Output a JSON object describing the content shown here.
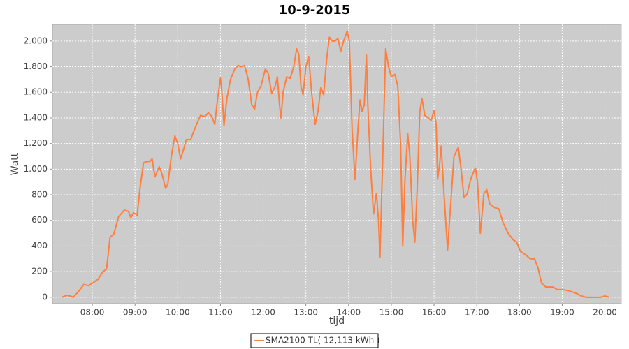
{
  "chart_data": {
    "type": "line",
    "title": "10-9-2015",
    "x_label": "tijd",
    "y_label": "Watt",
    "xlim": [
      "07:04",
      "20:23"
    ],
    "xticks": [
      "08:00",
      "09:00",
      "10:00",
      "11:00",
      "12:00",
      "13:00",
      "14:00",
      "15:00",
      "16:00",
      "17:00",
      "18:00",
      "19:00",
      "20:00"
    ],
    "ylim": [
      -50,
      2130
    ],
    "yticks": [
      0,
      200,
      400,
      600,
      800,
      {
        "value": 1000,
        "label": "1.000"
      },
      {
        "value": 1200,
        "label": "1.200"
      },
      {
        "value": 1400,
        "label": "1.400"
      },
      {
        "value": 1600,
        "label": "1.600"
      },
      {
        "value": 1800,
        "label": "1.800"
      },
      {
        "value": 2000,
        "label": "2.000"
      }
    ],
    "grid": true,
    "legend": "bottom",
    "series": [
      {
        "name": "SMA2100 TL( 12,113 kWh )",
        "color": "#ff7f3f",
        "x": [
          "07:17",
          "07:24",
          "07:29",
          "07:33",
          "07:40",
          "07:48",
          "07:55",
          "08:00",
          "08:08",
          "08:15",
          "08:20",
          "08:25",
          "08:30",
          "08:37",
          "08:45",
          "08:51",
          "08:54",
          "08:58",
          "09:03",
          "09:07",
          "09:12",
          "09:17",
          "09:21",
          "09:24",
          "09:28",
          "09:34",
          "09:38",
          "09:43",
          "09:46",
          "09:51",
          "09:56",
          "10:00",
          "10:04",
          "10:08",
          "10:12",
          "10:18",
          "10:25",
          "10:32",
          "10:38",
          "10:43",
          "10:48",
          "10:52",
          "10:56",
          "11:00",
          "11:02",
          "11:05",
          "11:09",
          "11:14",
          "11:20",
          "11:25",
          "11:29",
          "11:34",
          "11:39",
          "11:44",
          "11:48",
          "11:52",
          "11:57",
          "12:03",
          "12:07",
          "12:12",
          "12:17",
          "12:20",
          "12:23",
          "12:25",
          "12:28",
          "12:33",
          "12:38",
          "12:43",
          "12:47",
          "12:50",
          "12:53",
          "12:56",
          "13:00",
          "13:04",
          "13:08",
          "13:13",
          "13:17",
          "13:21",
          "13:25",
          "13:29",
          "13:33",
          "13:37",
          "13:41",
          "13:45",
          "13:49",
          "13:53",
          "13:58",
          "14:01",
          "14:05",
          "14:09",
          "14:13",
          "14:16",
          "14:19",
          "14:22",
          "14:25",
          "14:27",
          "14:31",
          "14:35",
          "14:39",
          "14:42",
          "14:44",
          "14:48",
          "14:52",
          "14:56",
          "15:00",
          "15:05",
          "15:09",
          "15:13",
          "15:16",
          "15:19",
          "15:23",
          "15:26",
          "15:30",
          "15:33",
          "15:36",
          "15:40",
          "15:43",
          "15:47",
          "15:52",
          "15:56",
          "16:00",
          "16:03",
          "16:05",
          "16:08",
          "16:10",
          "16:14",
          "16:19",
          "16:23",
          "16:28",
          "16:34",
          "16:38",
          "16:42",
          "16:46",
          "16:52",
          "16:58",
          "17:01",
          "17:05",
          "17:10",
          "17:14",
          "17:18",
          "17:25",
          "17:31",
          "17:37",
          "17:44",
          "17:51",
          "17:56",
          "18:01",
          "18:09",
          "18:15",
          "18:21",
          "18:26",
          "18:31",
          "18:37",
          "18:47",
          "18:53",
          "19:00",
          "19:10",
          "19:20",
          "19:27",
          "19:33",
          "19:54",
          "20:00",
          "20:06"
        ],
        "values": [
          0,
          15,
          10,
          0,
          40,
          100,
          90,
          110,
          140,
          200,
          220,
          470,
          490,
          630,
          680,
          670,
          620,
          660,
          640,
          850,
          1050,
          1060,
          1060,
          1080,
          940,
          1020,
          960,
          850,
          880,
          1100,
          1260,
          1200,
          1080,
          1150,
          1230,
          1230,
          1330,
          1420,
          1410,
          1440,
          1410,
          1350,
          1550,
          1710,
          1600,
          1340,
          1550,
          1700,
          1780,
          1810,
          1800,
          1810,
          1700,
          1500,
          1470,
          1600,
          1650,
          1780,
          1750,
          1590,
          1650,
          1720,
          1500,
          1400,
          1600,
          1720,
          1710,
          1800,
          1940,
          1900,
          1650,
          1580,
          1800,
          1880,
          1600,
          1350,
          1450,
          1640,
          1580,
          1850,
          2030,
          2000,
          2000,
          2020,
          1920,
          2000,
          2080,
          2000,
          1300,
          920,
          1300,
          1540,
          1450,
          1500,
          1890,
          1500,
          1000,
          650,
          810,
          600,
          310,
          1100,
          1940,
          1800,
          1720,
          1740,
          1650,
          1200,
          400,
          900,
          1280,
          1100,
          600,
          430,
          800,
          1450,
          1550,
          1420,
          1400,
          1380,
          1460,
          1350,
          920,
          1050,
          1180,
          800,
          370,
          700,
          1100,
          1170,
          1000,
          780,
          800,
          930,
          1010,
          900,
          500,
          810,
          840,
          730,
          700,
          690,
          580,
          500,
          450,
          430,
          360,
          330,
          300,
          300,
          230,
          110,
          80,
          80,
          60,
          60,
          50,
          30,
          10,
          0,
          0,
          10,
          0
        ]
      }
    ]
  }
}
